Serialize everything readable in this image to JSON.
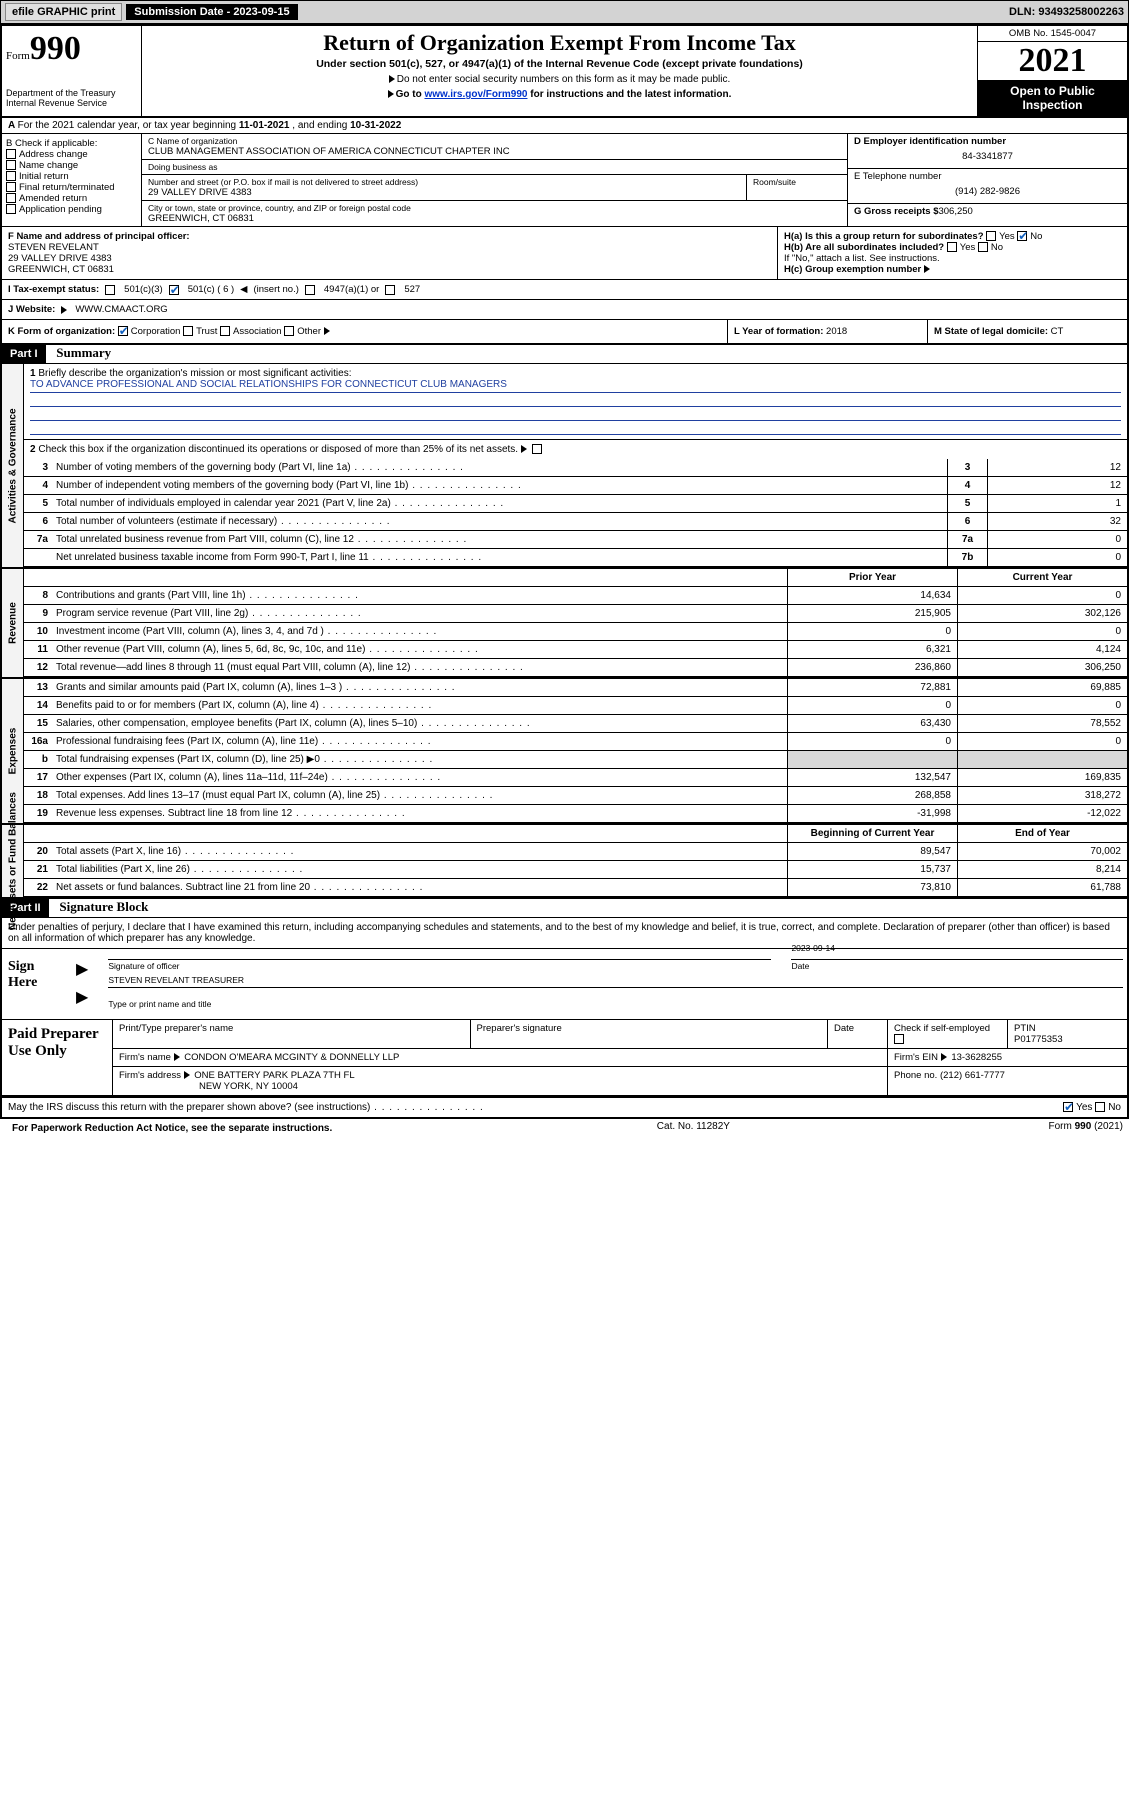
{
  "topbar": {
    "efile": "efile GRAPHIC print",
    "subdate_label": "Submission Date - 2023-09-15",
    "dln": "DLN: 93493258002263"
  },
  "header": {
    "form": "Form",
    "form_no": "990",
    "dept": "Department of the Treasury\nInternal Revenue Service",
    "title": "Return of Organization Exempt From Income Tax",
    "subtitle": "Under section 501(c), 527, or 4947(a)(1) of the Internal Revenue Code (except private foundations)",
    "note1": "Do not enter social security numbers on this form as it may be made public.",
    "note2_pre": "Go to ",
    "note2_link": "www.irs.gov/Form990",
    "note2_post": " for instructions and the latest information.",
    "omb": "OMB No. 1545-0047",
    "year": "2021",
    "opi": "Open to Public Inspection"
  },
  "row_a": {
    "text_pre": "For the 2021 calendar year, or tax year beginning ",
    "begin": "11-01-2021",
    "mid": " , and ending ",
    "end": "10-31-2022"
  },
  "col_b": {
    "hdr": "B Check if applicable:",
    "items": [
      "Address change",
      "Name change",
      "Initial return",
      "Final return/terminated",
      "Amended return",
      "Application pending"
    ]
  },
  "col_c": {
    "name_lbl": "C Name of organization",
    "name": "CLUB MANAGEMENT ASSOCIATION OF AMERICA CONNECTICUT CHAPTER INC",
    "dba_lbl": "Doing business as",
    "dba": "",
    "street_lbl": "Number and street (or P.O. box if mail is not delivered to street address)",
    "street": "29 VALLEY DRIVE 4383",
    "room_lbl": "Room/suite",
    "city_lbl": "City or town, state or province, country, and ZIP or foreign postal code",
    "city": "GREENWICH, CT  06831"
  },
  "col_d": {
    "d_lbl": "D Employer identification number",
    "d_val": "84-3341877",
    "e_lbl": "E Telephone number",
    "e_val": "(914) 282-9826",
    "g_lbl": "G Gross receipts $",
    "g_val": "306,250"
  },
  "row_f": {
    "f_lbl": "F Name and address of principal officer:",
    "f_name": "STEVEN REVELANT",
    "f_addr1": "29 VALLEY DRIVE 4383",
    "f_addr2": "GREENWICH, CT  06831",
    "ha_lbl": "H(a)  Is this a group return for subordinates?",
    "ha_yes": "Yes",
    "ha_no": "No",
    "hb_lbl": "H(b)  Are all subordinates included?",
    "hb_note": "If \"No,\" attach a list. See instructions.",
    "hc_lbl": "H(c)  Group exemption number"
  },
  "row_i": {
    "lbl": "I   Tax-exempt status:",
    "o1": "501(c)(3)",
    "o2": "501(c) ( 6 )",
    "o2_hint": "(insert no.)",
    "o3": "4947(a)(1) or",
    "o4": "527"
  },
  "row_j": {
    "lbl": "J   Website:",
    "val": "WWW.CMAACT.ORG"
  },
  "row_k": {
    "k_lbl": "K Form of organization:",
    "k_opts": [
      "Corporation",
      "Trust",
      "Association",
      "Other"
    ],
    "l_lbl": "L Year of formation:",
    "l_val": "2018",
    "m_lbl": "M State of legal domicile:",
    "m_val": "CT"
  },
  "part1": {
    "title": "Part I",
    "heading": "Summary",
    "q1": "Briefly describe the organization's mission or most significant activities:",
    "mission": "TO ADVANCE PROFESSIONAL AND SOCIAL RELATIONSHIPS FOR CONNECTICUT CLUB MANAGERS",
    "q2": "Check this box        if the organization discontinued its operations or disposed of more than 25% of its net assets.",
    "lines_gov": [
      {
        "n": "3",
        "d": "Number of voting members of the governing body (Part VI, line 1a)",
        "b": "3",
        "v": "12"
      },
      {
        "n": "4",
        "d": "Number of independent voting members of the governing body (Part VI, line 1b)",
        "b": "4",
        "v": "12"
      },
      {
        "n": "5",
        "d": "Total number of individuals employed in calendar year 2021 (Part V, line 2a)",
        "b": "5",
        "v": "1"
      },
      {
        "n": "6",
        "d": "Total number of volunteers (estimate if necessary)",
        "b": "6",
        "v": "32"
      },
      {
        "n": "7a",
        "d": "Total unrelated business revenue from Part VIII, column (C), line 12",
        "b": "7a",
        "v": "0"
      },
      {
        "n": "",
        "d": "Net unrelated business taxable income from Form 990-T, Part I, line 11",
        "b": "7b",
        "v": "0"
      }
    ],
    "col_hdrs": {
      "prior": "Prior Year",
      "current": "Current Year",
      "boy": "Beginning of Current Year",
      "eoy": "End of Year"
    },
    "revenue": [
      {
        "n": "8",
        "d": "Contributions and grants (Part VIII, line 1h)",
        "p": "14,634",
        "c": "0"
      },
      {
        "n": "9",
        "d": "Program service revenue (Part VIII, line 2g)",
        "p": "215,905",
        "c": "302,126"
      },
      {
        "n": "10",
        "d": "Investment income (Part VIII, column (A), lines 3, 4, and 7d )",
        "p": "0",
        "c": "0"
      },
      {
        "n": "11",
        "d": "Other revenue (Part VIII, column (A), lines 5, 6d, 8c, 9c, 10c, and 11e)",
        "p": "6,321",
        "c": "4,124"
      },
      {
        "n": "12",
        "d": "Total revenue—add lines 8 through 11 (must equal Part VIII, column (A), line 12)",
        "p": "236,860",
        "c": "306,250"
      }
    ],
    "expenses": [
      {
        "n": "13",
        "d": "Grants and similar amounts paid (Part IX, column (A), lines 1–3 )",
        "p": "72,881",
        "c": "69,885"
      },
      {
        "n": "14",
        "d": "Benefits paid to or for members (Part IX, column (A), line 4)",
        "p": "0",
        "c": "0"
      },
      {
        "n": "15",
        "d": "Salaries, other compensation, employee benefits (Part IX, column (A), lines 5–10)",
        "p": "63,430",
        "c": "78,552"
      },
      {
        "n": "16a",
        "d": "Professional fundraising fees (Part IX, column (A), line 11e)",
        "p": "0",
        "c": "0"
      },
      {
        "n": "b",
        "d": "Total fundraising expenses (Part IX, column (D), line 25) ▶0",
        "p": "",
        "c": "",
        "shade": true
      },
      {
        "n": "17",
        "d": "Other expenses (Part IX, column (A), lines 11a–11d, 11f–24e)",
        "p": "132,547",
        "c": "169,835"
      },
      {
        "n": "18",
        "d": "Total expenses. Add lines 13–17 (must equal Part IX, column (A), line 25)",
        "p": "268,858",
        "c": "318,272"
      },
      {
        "n": "19",
        "d": "Revenue less expenses. Subtract line 18 from line 12",
        "p": "-31,998",
        "c": "-12,022"
      }
    ],
    "netassets": [
      {
        "n": "20",
        "d": "Total assets (Part X, line 16)",
        "p": "89,547",
        "c": "70,002"
      },
      {
        "n": "21",
        "d": "Total liabilities (Part X, line 26)",
        "p": "15,737",
        "c": "8,214"
      },
      {
        "n": "22",
        "d": "Net assets or fund balances. Subtract line 21 from line 20",
        "p": "73,810",
        "c": "61,788"
      }
    ],
    "side_gov": "Activities & Governance",
    "side_rev": "Revenue",
    "side_exp": "Expenses",
    "side_net": "Net Assets or Fund Balances"
  },
  "part2": {
    "title": "Part II",
    "heading": "Signature Block",
    "decl": "Under penalties of perjury, I declare that I have examined this return, including accompanying schedules and statements, and to the best of my knowledge and belief, it is true, correct, and complete. Declaration of preparer (other than officer) is based on all information of which preparer has any knowledge.",
    "sign_here": "Sign Here",
    "sig_officer": "Signature of officer",
    "date_lbl": "Date",
    "sig_date": "2023-09-14",
    "officer_name": "STEVEN REVELANT TREASURER",
    "type_lbl": "Type or print name and title",
    "paid": "Paid Preparer Use Only",
    "pp_name_lbl": "Print/Type preparer's name",
    "pp_sig_lbl": "Preparer's signature",
    "pp_date_lbl": "Date",
    "pp_check": "Check         if self-employed",
    "ptin_lbl": "PTIN",
    "ptin": "P01775353",
    "firm_name_lbl": "Firm's name",
    "firm_name": "CONDON O'MEARA MCGINTY & DONNELLY LLP",
    "firm_ein_lbl": "Firm's EIN",
    "firm_ein": "13-3628255",
    "firm_addr_lbl": "Firm's address",
    "firm_addr1": "ONE BATTERY PARK PLAZA 7TH FL",
    "firm_addr2": "NEW YORK, NY  10004",
    "phone_lbl": "Phone no.",
    "phone": "(212) 661-7777",
    "discuss": "May the IRS discuss this return with the preparer shown above? (see instructions)",
    "yes": "Yes",
    "no": "No"
  },
  "footer": {
    "paperwork": "For Paperwork Reduction Act Notice, see the separate instructions.",
    "cat": "Cat. No. 11282Y",
    "form": "Form 990 (2021)"
  },
  "colors": {
    "link": "#0033cc",
    "check": "#1060c0",
    "shade": "#d8d8d8"
  }
}
